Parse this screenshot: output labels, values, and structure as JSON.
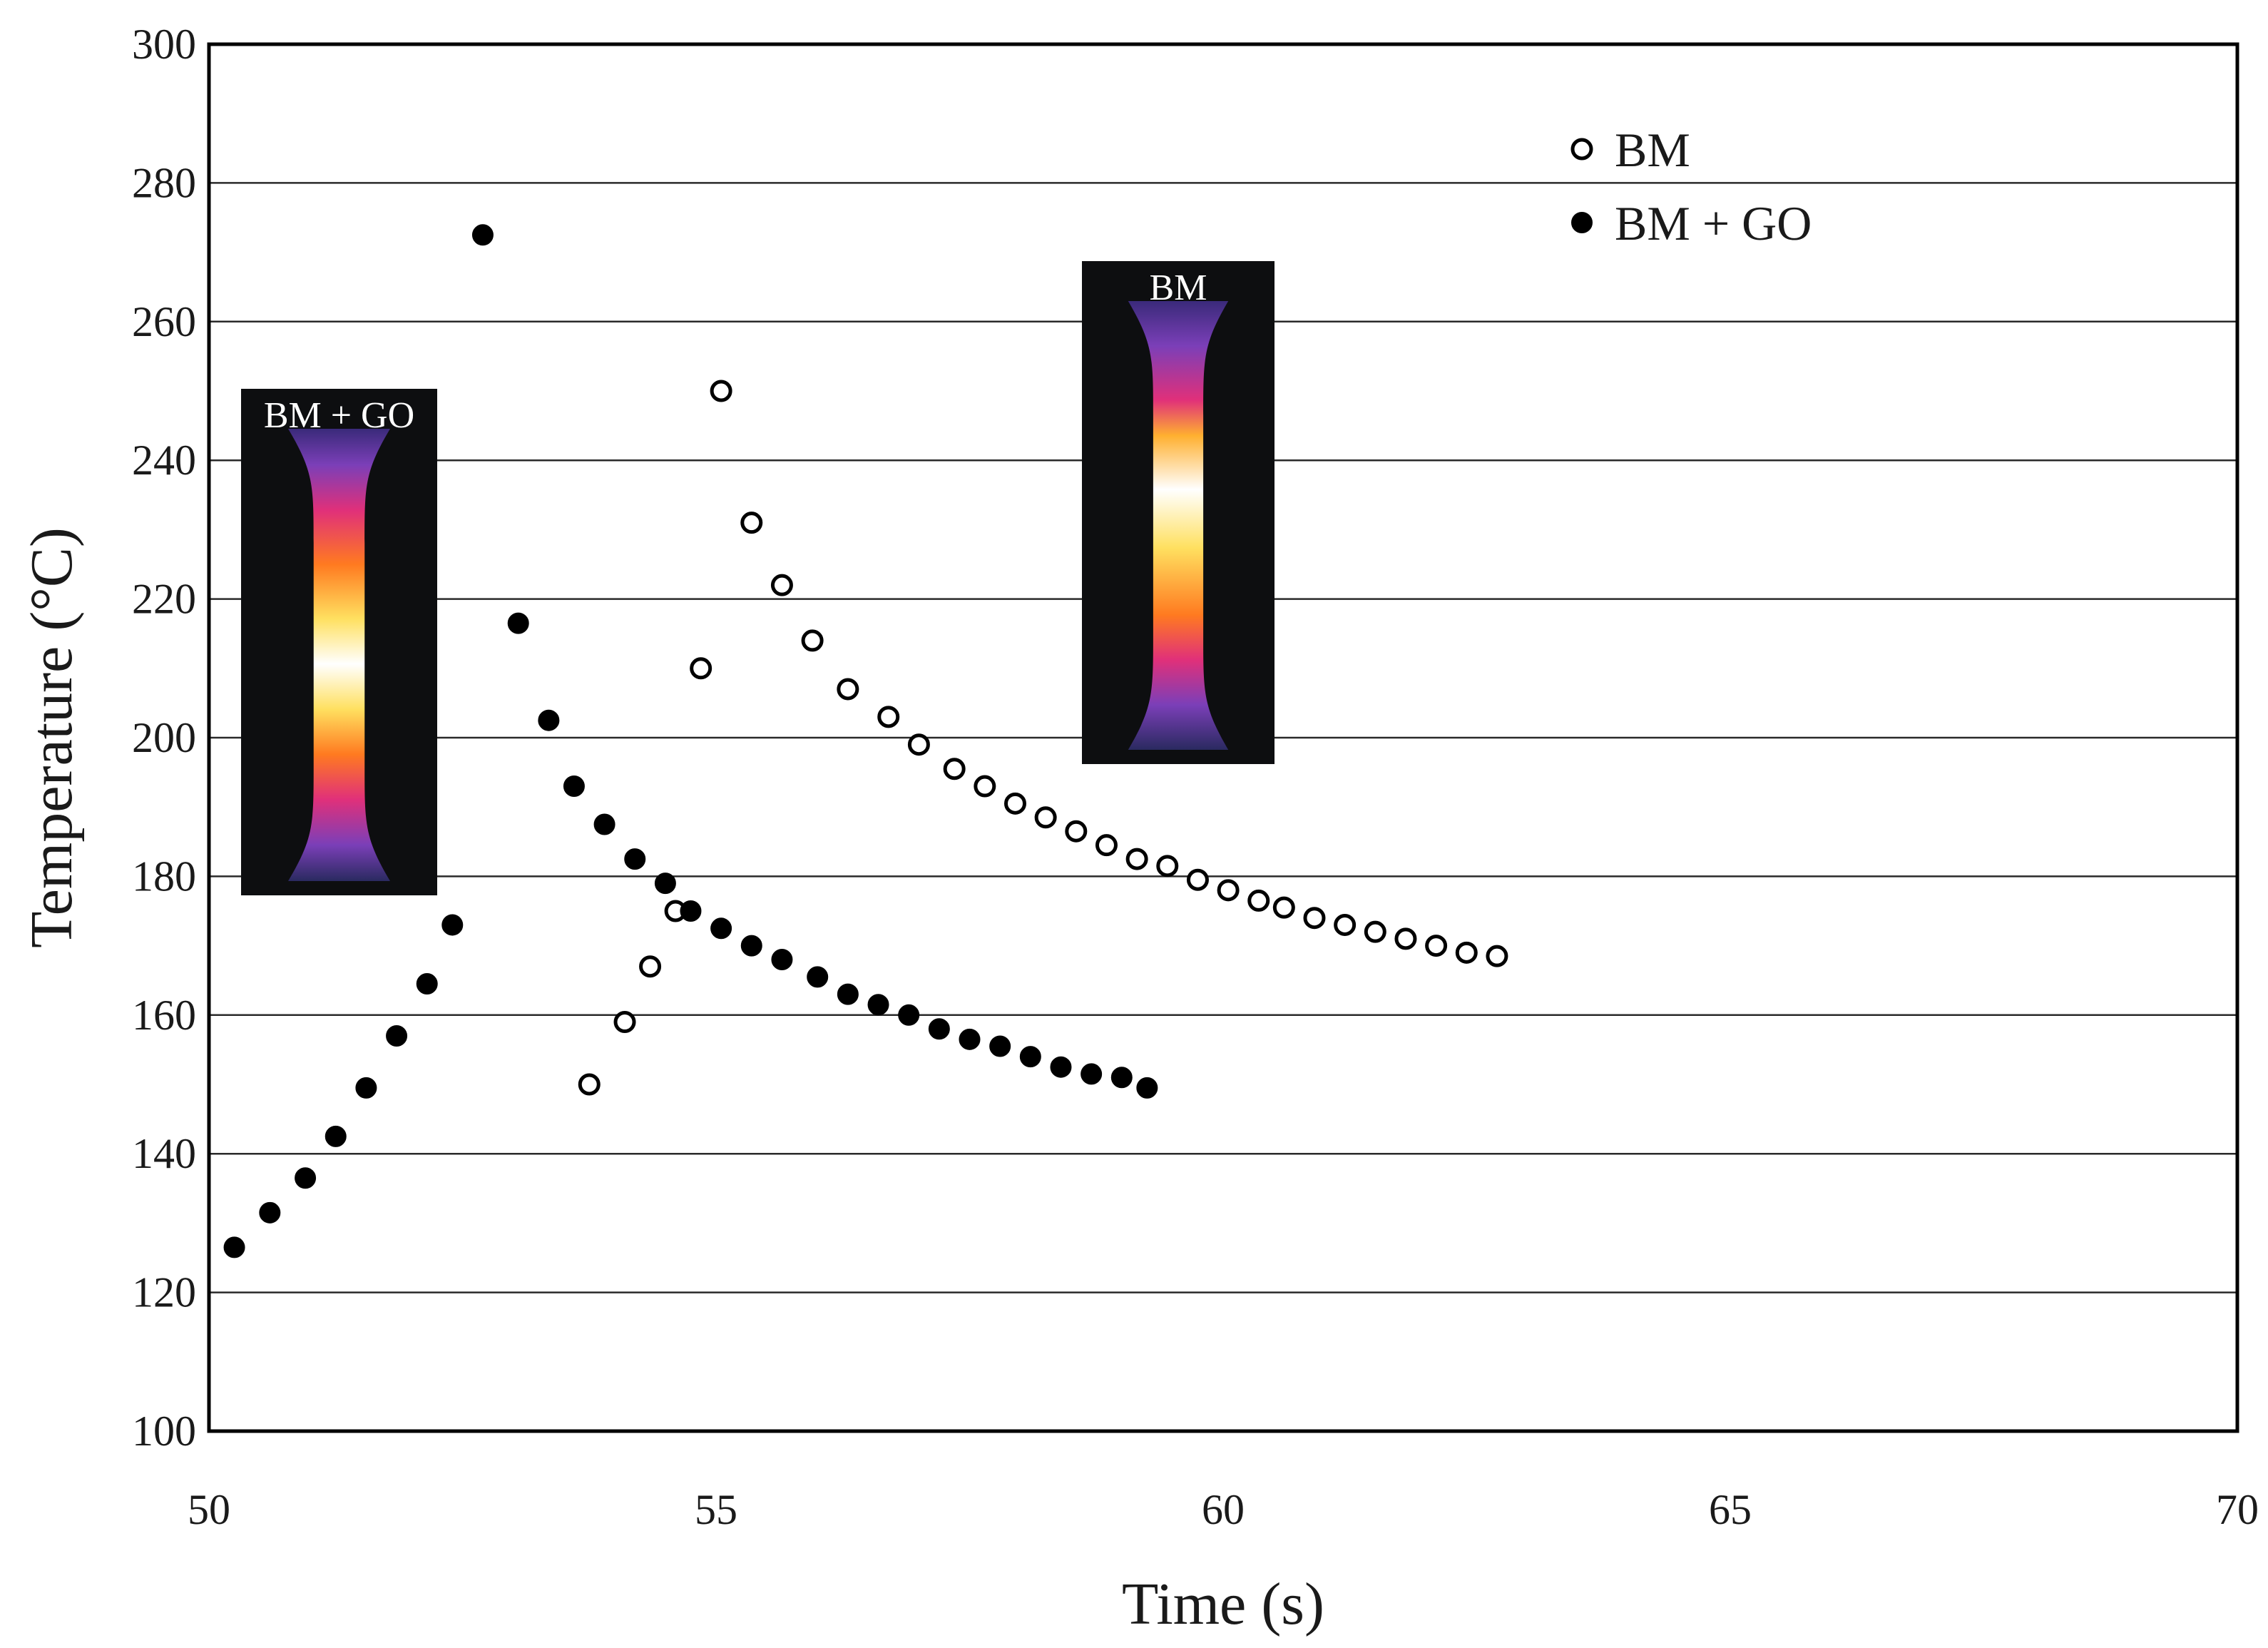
{
  "chart_data": {
    "type": "scatter",
    "title": "",
    "xlabel": "Time (s)",
    "ylabel": "Temperature (°C)",
    "xlim": [
      50,
      70
    ],
    "ylim": [
      100,
      300
    ],
    "xticks": [
      "50",
      "55",
      "60",
      "65",
      "70"
    ],
    "yticks": [
      "100",
      "120",
      "140",
      "160",
      "180",
      "200",
      "220",
      "240",
      "260",
      "280",
      "300"
    ],
    "grid": "horizontal",
    "legend_position": "top-right",
    "series": [
      {
        "name": "BM",
        "marker": "open-circle",
        "color": "#000000",
        "x": [
          53.75,
          54.1,
          54.35,
          54.6,
          54.85,
          55.05,
          55.35,
          55.65,
          55.95,
          56.3,
          56.7,
          57.0,
          57.35,
          57.65,
          57.95,
          58.25,
          58.55,
          58.85,
          59.15,
          59.45,
          59.75,
          60.05,
          60.35,
          60.6,
          60.9,
          61.2,
          61.5,
          61.8,
          62.1,
          62.4,
          62.7
        ],
        "y": [
          150,
          159,
          167,
          175,
          210,
          250,
          231,
          222,
          214,
          207,
          203,
          199,
          195.5,
          193,
          190.5,
          188.5,
          186.5,
          184.5,
          182.5,
          181.5,
          179.5,
          178,
          176.5,
          175.5,
          174,
          173,
          172,
          171,
          170,
          169,
          168.5
        ]
      },
      {
        "name": "BM + GO",
        "marker": "filled-circle",
        "color": "#000000",
        "x": [
          50.25,
          50.6,
          50.95,
          51.25,
          51.55,
          51.85,
          52.15,
          52.4,
          52.7,
          53.05,
          53.35,
          53.6,
          53.9,
          54.2,
          54.5,
          54.75,
          55.05,
          55.35,
          55.65,
          56.0,
          56.3,
          56.6,
          56.9,
          57.2,
          57.5,
          57.8,
          58.1,
          58.4,
          58.7,
          59.0,
          59.25
        ],
        "y": [
          126.5,
          131.5,
          136.5,
          142.5,
          149.5,
          157,
          164.5,
          173,
          272.5,
          216.5,
          202.5,
          193,
          187.5,
          182.5,
          179,
          175,
          172.5,
          170,
          168,
          165.5,
          163,
          161.5,
          160,
          158,
          156.5,
          155.5,
          154,
          152.5,
          151.5,
          151,
          149.5
        ]
      }
    ],
    "insets": [
      {
        "label": "BM + GO"
      },
      {
        "label": "BM"
      }
    ]
  }
}
